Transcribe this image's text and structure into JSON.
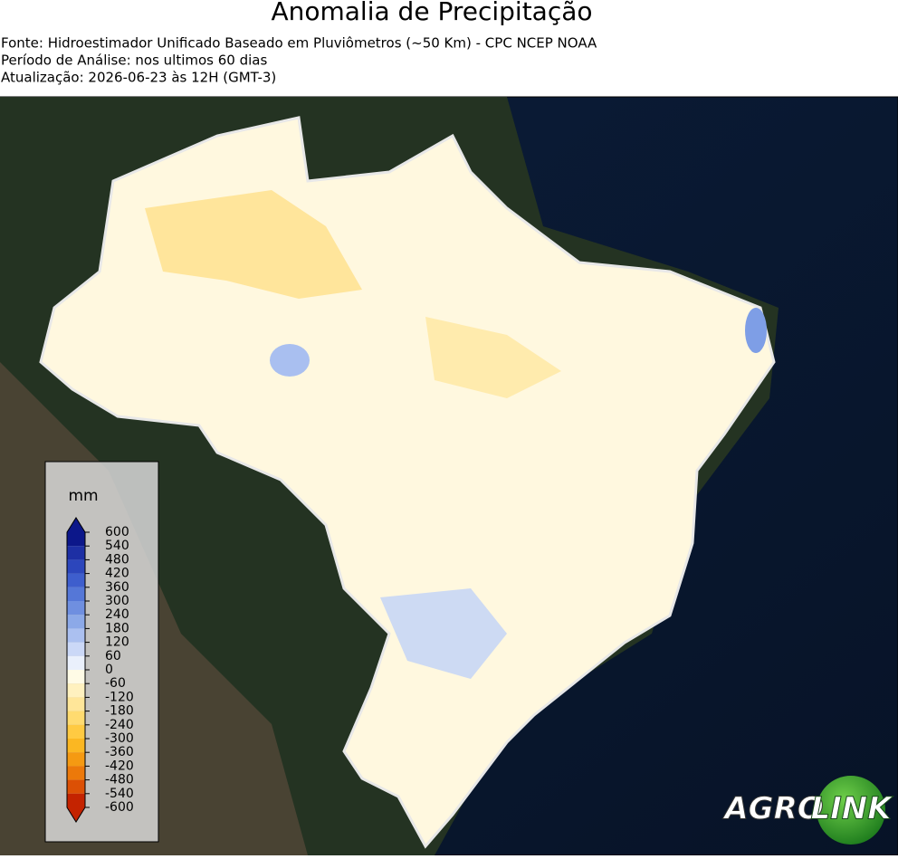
{
  "header": {
    "title": "Anomalia de Precipitação",
    "lines": [
      "Fonte: Hidroestimador Unificado Baseado em Pluviômetros (~50 Km) - CPC NCEP NOAA",
      "Período de Análise: nos ultimos 60 dias",
      "Atualização: 2026-06-23 às 12H (GMT-3)"
    ]
  },
  "colorbar": {
    "unit": "mm",
    "ticks": [
      600,
      540,
      480,
      420,
      360,
      300,
      240,
      180,
      120,
      60,
      0,
      -60,
      -120,
      -180,
      -240,
      -300,
      -360,
      -420,
      -480,
      -540,
      -600
    ],
    "colors": [
      "#0c178a",
      "#1d2fa4",
      "#2c46bc",
      "#3e5ecd",
      "#5577d7",
      "#6f8fe0",
      "#8ca9e8",
      "#abc0f0",
      "#cbd8f7",
      "#eaf0fc",
      "#fffbe6",
      "#fff1bf",
      "#ffe699",
      "#ffdb70",
      "#ffca42",
      "#fbb722",
      "#f59a12",
      "#ec790a",
      "#dc5005",
      "#c42300"
    ]
  },
  "logo": {
    "left": "AGRO",
    "right": "LINK"
  }
}
